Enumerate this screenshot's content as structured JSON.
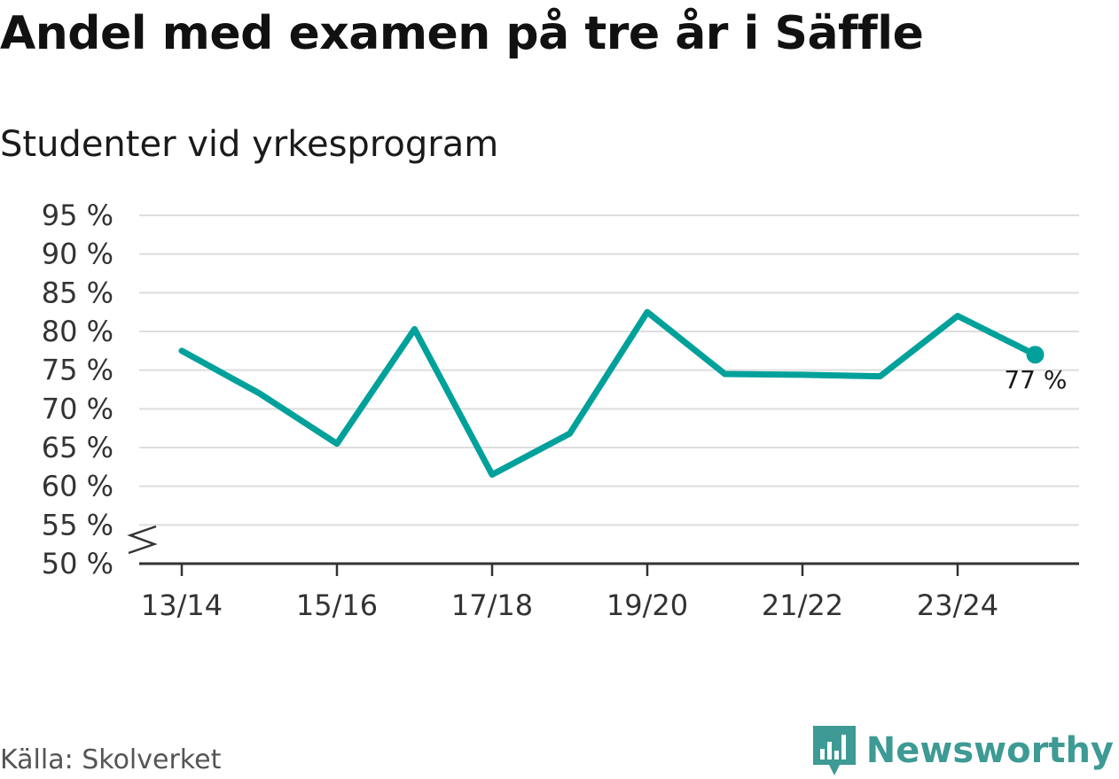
{
  "title": "Andel med examen på tre år i Säffle",
  "subtitle": "Studenter vid yrkesprogram",
  "source": "Källa: Skolverket",
  "brand": {
    "name": "Newsworthy",
    "icon": "newsworthy-logo-icon",
    "color": "#3d9a94"
  },
  "chart_data": {
    "type": "line",
    "x": [
      "13/14",
      "14/15",
      "15/16",
      "16/17",
      "17/18",
      "18/19",
      "19/20",
      "20/21",
      "21/22",
      "22/23",
      "23/24",
      "24/25"
    ],
    "series": [
      {
        "values": [
          77.5,
          72.0,
          65.5,
          80.3,
          61.5,
          66.8,
          82.5,
          74.5,
          74.4,
          74.2,
          82.0,
          77.0
        ],
        "color": "#00a19a"
      }
    ],
    "xticks": [
      "13/14",
      "15/16",
      "17/18",
      "19/20",
      "21/22",
      "23/24"
    ],
    "yticks": [
      50,
      55,
      60,
      65,
      70,
      75,
      80,
      85,
      90,
      95
    ],
    "ytick_labels": [
      "50 %",
      "55 %",
      "60 %",
      "65 %",
      "70 %",
      "75 %",
      "80 %",
      "85 %",
      "90 %",
      "95 %"
    ],
    "ylim": [
      50,
      95
    ],
    "y_axis_break": true,
    "grid": "horizontal",
    "end_label": "77 %"
  }
}
